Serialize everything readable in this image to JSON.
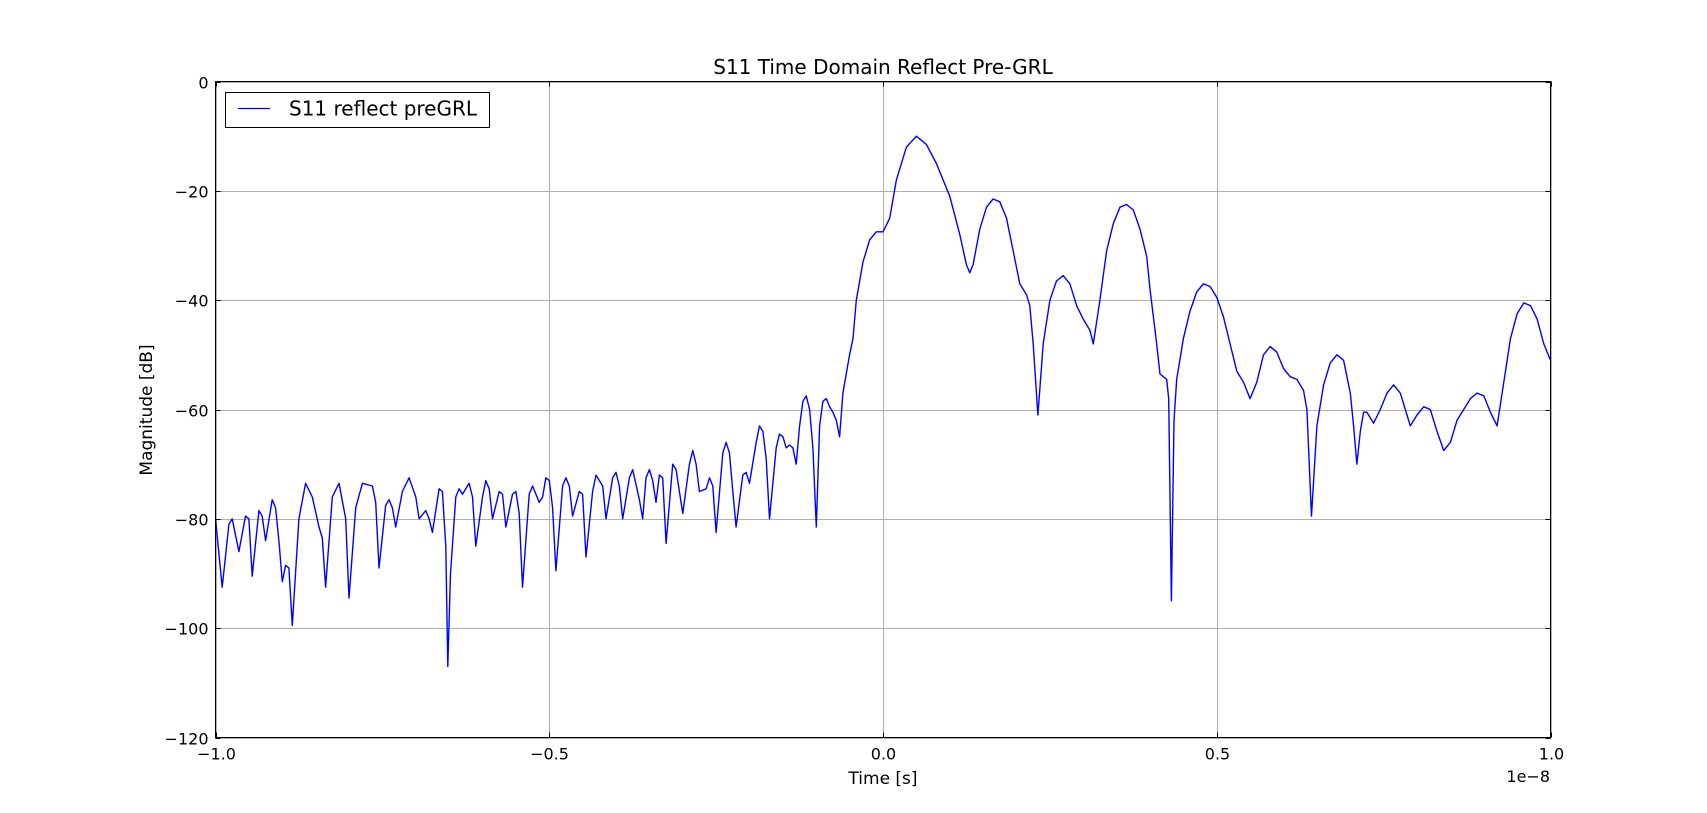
{
  "chart_data": {
    "type": "line",
    "title": "S11 Time Domain Reflect Pre-GRL",
    "xlabel": "Time [s]",
    "ylabel": "Magnitude [dB]",
    "x_offset_label": "1e−8",
    "xlim": [
      -1.0,
      1.0
    ],
    "ylim": [
      -120,
      0
    ],
    "x_unit_scale": 1e-08,
    "xticks": [
      -1.0,
      -0.5,
      0.0,
      0.5,
      1.0
    ],
    "xtick_labels": [
      "−1.0",
      "−0.5",
      "0.0",
      "0.5",
      "1.0"
    ],
    "yticks": [
      0,
      -20,
      -40,
      -60,
      -80,
      -100,
      -120
    ],
    "ytick_labels": [
      "0",
      "−20",
      "−40",
      "−60",
      "−80",
      "−100",
      "−120"
    ],
    "grid": true,
    "legend_position": "upper-left",
    "series": [
      {
        "name": "S11 reflect preGRL",
        "color": "#0000ff",
        "points": [
          [
            -1.0,
            -80
          ],
          [
            -0.99,
            -92.5
          ],
          [
            -0.98,
            -81
          ],
          [
            -0.975,
            -80
          ],
          [
            -0.965,
            -86
          ],
          [
            -0.955,
            -79.5
          ],
          [
            -0.95,
            -80
          ],
          [
            -0.945,
            -90.5
          ],
          [
            -0.935,
            -78.5
          ],
          [
            -0.93,
            -79.5
          ],
          [
            -0.925,
            -84
          ],
          [
            -0.915,
            -76.5
          ],
          [
            -0.91,
            -78
          ],
          [
            -0.905,
            -84
          ],
          [
            -0.9,
            -91.5
          ],
          [
            -0.895,
            -88.5
          ],
          [
            -0.89,
            -89
          ],
          [
            -0.885,
            -99.5
          ],
          [
            -0.875,
            -80
          ],
          [
            -0.865,
            -73.5
          ],
          [
            -0.855,
            -76
          ],
          [
            -0.845,
            -81.5
          ],
          [
            -0.84,
            -83.5
          ],
          [
            -0.835,
            -92.5
          ],
          [
            -0.825,
            -76
          ],
          [
            -0.815,
            -73.5
          ],
          [
            -0.805,
            -80
          ],
          [
            -0.8,
            -94.5
          ],
          [
            -0.79,
            -78
          ],
          [
            -0.78,
            -73.5
          ],
          [
            -0.765,
            -74
          ],
          [
            -0.76,
            -77
          ],
          [
            -0.755,
            -89
          ],
          [
            -0.745,
            -77.5
          ],
          [
            -0.74,
            -76.5
          ],
          [
            -0.735,
            -78
          ],
          [
            -0.73,
            -81.5
          ],
          [
            -0.72,
            -75
          ],
          [
            -0.71,
            -72.5
          ],
          [
            -0.7,
            -76
          ],
          [
            -0.695,
            -80
          ],
          [
            -0.685,
            -78.5
          ],
          [
            -0.68,
            -80
          ],
          [
            -0.675,
            -82.5
          ],
          [
            -0.665,
            -74.5
          ],
          [
            -0.66,
            -75
          ],
          [
            -0.655,
            -85
          ],
          [
            -0.652,
            -107
          ],
          [
            -0.648,
            -90
          ],
          [
            -0.64,
            -76
          ],
          [
            -0.635,
            -74.5
          ],
          [
            -0.63,
            -75.5
          ],
          [
            -0.62,
            -73.5
          ],
          [
            -0.615,
            -76
          ],
          [
            -0.61,
            -85
          ],
          [
            -0.6,
            -76
          ],
          [
            -0.595,
            -73
          ],
          [
            -0.59,
            -74.5
          ],
          [
            -0.585,
            -80
          ],
          [
            -0.575,
            -75
          ],
          [
            -0.57,
            -75.5
          ],
          [
            -0.565,
            -81.5
          ],
          [
            -0.555,
            -75.5
          ],
          [
            -0.55,
            -75
          ],
          [
            -0.545,
            -79
          ],
          [
            -0.54,
            -92.5
          ],
          [
            -0.53,
            -75.5
          ],
          [
            -0.525,
            -74
          ],
          [
            -0.515,
            -77
          ],
          [
            -0.51,
            -76
          ],
          [
            -0.505,
            -72.5
          ],
          [
            -0.5,
            -73
          ],
          [
            -0.495,
            -78
          ],
          [
            -0.49,
            -89.5
          ],
          [
            -0.48,
            -74
          ],
          [
            -0.475,
            -72.5
          ],
          [
            -0.47,
            -74
          ],
          [
            -0.465,
            -79.5
          ],
          [
            -0.455,
            -75
          ],
          [
            -0.45,
            -75.5
          ],
          [
            -0.445,
            -87
          ],
          [
            -0.435,
            -75
          ],
          [
            -0.43,
            -72
          ],
          [
            -0.42,
            -74
          ],
          [
            -0.415,
            -80
          ],
          [
            -0.405,
            -72.5
          ],
          [
            -0.4,
            -71.5
          ],
          [
            -0.395,
            -74
          ],
          [
            -0.39,
            -80
          ],
          [
            -0.38,
            -72.5
          ],
          [
            -0.375,
            -71
          ],
          [
            -0.365,
            -76.5
          ],
          [
            -0.36,
            -80
          ],
          [
            -0.355,
            -72.5
          ],
          [
            -0.35,
            -71
          ],
          [
            -0.345,
            -73
          ],
          [
            -0.34,
            -77
          ],
          [
            -0.335,
            -72
          ],
          [
            -0.33,
            -72.5
          ],
          [
            -0.325,
            -84.5
          ],
          [
            -0.315,
            -70
          ],
          [
            -0.31,
            -71
          ],
          [
            -0.305,
            -75
          ],
          [
            -0.3,
            -79
          ],
          [
            -0.29,
            -70
          ],
          [
            -0.285,
            -67.5
          ],
          [
            -0.28,
            -70
          ],
          [
            -0.275,
            -75
          ],
          [
            -0.265,
            -74.5
          ],
          [
            -0.26,
            -72.5
          ],
          [
            -0.255,
            -74
          ],
          [
            -0.25,
            -82.5
          ],
          [
            -0.24,
            -68
          ],
          [
            -0.235,
            -66
          ],
          [
            -0.23,
            -68
          ],
          [
            -0.225,
            -75
          ],
          [
            -0.22,
            -81.5
          ],
          [
            -0.21,
            -72
          ],
          [
            -0.205,
            -71.5
          ],
          [
            -0.2,
            -73.5
          ],
          [
            -0.19,
            -66
          ],
          [
            -0.185,
            -63
          ],
          [
            -0.18,
            -64
          ],
          [
            -0.175,
            -69
          ],
          [
            -0.17,
            -80
          ],
          [
            -0.16,
            -67
          ],
          [
            -0.155,
            -64.5
          ],
          [
            -0.15,
            -65
          ],
          [
            -0.145,
            -67
          ],
          [
            -0.14,
            -66.5
          ],
          [
            -0.135,
            -67
          ],
          [
            -0.13,
            -70
          ],
          [
            -0.125,
            -63
          ],
          [
            -0.12,
            -58.5
          ],
          [
            -0.115,
            -57.5
          ],
          [
            -0.11,
            -60
          ],
          [
            -0.105,
            -67
          ],
          [
            -0.1,
            -81.5
          ],
          [
            -0.095,
            -63
          ],
          [
            -0.09,
            -58.5
          ],
          [
            -0.085,
            -58
          ],
          [
            -0.08,
            -59.5
          ],
          [
            -0.075,
            -60.5
          ],
          [
            -0.07,
            -62
          ],
          [
            -0.065,
            -65
          ],
          [
            -0.06,
            -57
          ],
          [
            -0.05,
            -50
          ],
          [
            -0.045,
            -47
          ],
          [
            -0.04,
            -40
          ],
          [
            -0.03,
            -33
          ],
          [
            -0.02,
            -29
          ],
          [
            -0.01,
            -27.5
          ],
          [
            0.0,
            -27.5
          ],
          [
            0.01,
            -25
          ],
          [
            0.02,
            -18
          ],
          [
            0.035,
            -12
          ],
          [
            0.05,
            -10
          ],
          [
            0.065,
            -11.5
          ],
          [
            0.08,
            -15
          ],
          [
            0.1,
            -21
          ],
          [
            0.115,
            -28
          ],
          [
            0.125,
            -33.5
          ],
          [
            0.13,
            -35
          ],
          [
            0.135,
            -33.5
          ],
          [
            0.145,
            -27
          ],
          [
            0.155,
            -23
          ],
          [
            0.165,
            -21.5
          ],
          [
            0.175,
            -22
          ],
          [
            0.185,
            -25
          ],
          [
            0.195,
            -31
          ],
          [
            0.205,
            -37
          ],
          [
            0.215,
            -39
          ],
          [
            0.22,
            -41
          ],
          [
            0.225,
            -48
          ],
          [
            0.232,
            -61
          ],
          [
            0.24,
            -48
          ],
          [
            0.25,
            -40
          ],
          [
            0.26,
            -36.5
          ],
          [
            0.27,
            -35.5
          ],
          [
            0.28,
            -37
          ],
          [
            0.29,
            -41
          ],
          [
            0.3,
            -43.5
          ],
          [
            0.31,
            -45.5
          ],
          [
            0.315,
            -48
          ],
          [
            0.325,
            -40
          ],
          [
            0.335,
            -31
          ],
          [
            0.345,
            -26
          ],
          [
            0.355,
            -23
          ],
          [
            0.365,
            -22.5
          ],
          [
            0.375,
            -23.5
          ],
          [
            0.385,
            -27
          ],
          [
            0.395,
            -32
          ],
          [
            0.4,
            -38
          ],
          [
            0.41,
            -48
          ],
          [
            0.415,
            -53.5
          ],
          [
            0.42,
            -54
          ],
          [
            0.425,
            -54.5
          ],
          [
            0.428,
            -58
          ],
          [
            0.432,
            -95
          ],
          [
            0.436,
            -62
          ],
          [
            0.44,
            -54.5
          ],
          [
            0.45,
            -47
          ],
          [
            0.46,
            -42
          ],
          [
            0.47,
            -38.5
          ],
          [
            0.48,
            -37
          ],
          [
            0.49,
            -37.5
          ],
          [
            0.5,
            -39.5
          ],
          [
            0.51,
            -43
          ],
          [
            0.52,
            -48
          ],
          [
            0.53,
            -53
          ],
          [
            0.54,
            -55
          ],
          [
            0.55,
            -58
          ],
          [
            0.56,
            -55
          ],
          [
            0.57,
            -50
          ],
          [
            0.58,
            -48.5
          ],
          [
            0.59,
            -49.5
          ],
          [
            0.6,
            -52.5
          ],
          [
            0.61,
            -54
          ],
          [
            0.62,
            -54.5
          ],
          [
            0.63,
            -56.5
          ],
          [
            0.635,
            -60
          ],
          [
            0.642,
            -79.5
          ],
          [
            0.65,
            -63
          ],
          [
            0.66,
            -55.5
          ],
          [
            0.67,
            -51.5
          ],
          [
            0.68,
            -50
          ],
          [
            0.69,
            -51
          ],
          [
            0.7,
            -57
          ],
          [
            0.705,
            -63
          ],
          [
            0.71,
            -70
          ],
          [
            0.715,
            -64
          ],
          [
            0.72,
            -60.5
          ],
          [
            0.725,
            -60.5
          ],
          [
            0.735,
            -62.5
          ],
          [
            0.745,
            -60
          ],
          [
            0.755,
            -57
          ],
          [
            0.765,
            -55.5
          ],
          [
            0.775,
            -57
          ],
          [
            0.785,
            -61
          ],
          [
            0.79,
            -63
          ],
          [
            0.8,
            -61
          ],
          [
            0.81,
            -59.5
          ],
          [
            0.82,
            -60
          ],
          [
            0.83,
            -64
          ],
          [
            0.84,
            -67.5
          ],
          [
            0.85,
            -66
          ],
          [
            0.86,
            -62
          ],
          [
            0.87,
            -60
          ],
          [
            0.88,
            -58
          ],
          [
            0.89,
            -57
          ],
          [
            0.9,
            -57.5
          ],
          [
            0.91,
            -60.5
          ],
          [
            0.92,
            -63
          ],
          [
            0.93,
            -55
          ],
          [
            0.94,
            -47
          ],
          [
            0.95,
            -42.5
          ],
          [
            0.96,
            -40.5
          ],
          [
            0.97,
            -41
          ],
          [
            0.98,
            -43.5
          ],
          [
            0.99,
            -48
          ],
          [
            1.0,
            -51
          ]
        ]
      }
    ]
  }
}
